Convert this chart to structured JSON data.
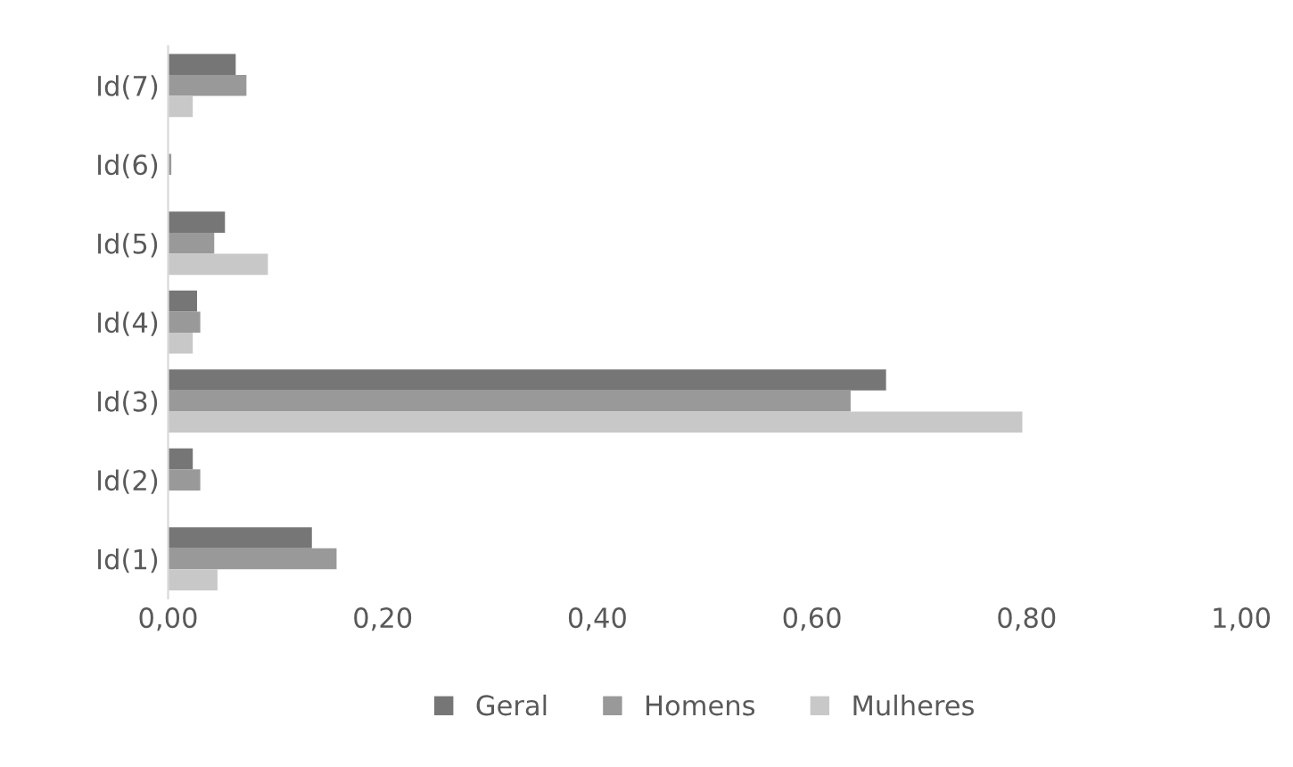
{
  "chart_data": {
    "type": "bar",
    "orientation": "horizontal",
    "categories": [
      "Id(7)",
      "Id(6)",
      "Id(5)",
      "Id(4)",
      "Id(3)",
      "Id(2)",
      "Id(1)"
    ],
    "series": [
      {
        "name": "Geral",
        "color": "#767676",
        "values": [
          0.063,
          0,
          0.053,
          0.027,
          0.669,
          0.023,
          0.134
        ]
      },
      {
        "name": "Homens",
        "color": "#999999",
        "values": [
          0.073,
          0.003,
          0.043,
          0.03,
          0.636,
          0.03,
          0.157
        ]
      },
      {
        "name": "Mulheres",
        "color": "#c8c8c8",
        "values": [
          0.023,
          0,
          0.093,
          0.023,
          0.796,
          0,
          0.046
        ]
      }
    ],
    "xlim": [
      0,
      1
    ],
    "xticks": [
      {
        "value": 0,
        "label": "0,00"
      },
      {
        "value": 0.2,
        "label": "0,20"
      },
      {
        "value": 0.4,
        "label": "0,40"
      },
      {
        "value": 0.6,
        "label": "0,60"
      },
      {
        "value": 0.8,
        "label": "0,80"
      },
      {
        "value": 1,
        "label": "1,00"
      }
    ],
    "grid": false,
    "legend": "bottom"
  }
}
